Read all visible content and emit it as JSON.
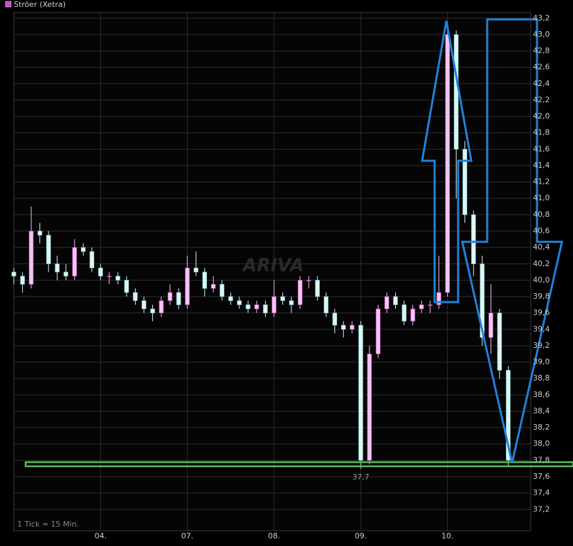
{
  "chart_data": {
    "type": "candlestick",
    "legend": "Ströer (Xetra)",
    "note": "1 Tick = 15 Min.",
    "watermark": "ARIVA",
    "grid": true,
    "xlim": [
      0,
      5.96
    ],
    "xticks": [
      {
        "value": 1,
        "label": "04."
      },
      {
        "value": 2,
        "label": "07."
      },
      {
        "value": 3,
        "label": "08."
      },
      {
        "value": 4,
        "label": "09."
      },
      {
        "value": 5,
        "label": "10."
      }
    ],
    "ylim": [
      36.94,
      43.27
    ],
    "yticks": [
      {
        "value": 37.2,
        "label": "37,2"
      },
      {
        "value": 37.4,
        "label": "37,4"
      },
      {
        "value": 37.6,
        "label": "37,6"
      },
      {
        "value": 37.8,
        "label": "37,8"
      },
      {
        "value": 38.0,
        "label": "38,0"
      },
      {
        "value": 38.2,
        "label": "38,2"
      },
      {
        "value": 38.4,
        "label": "38,4"
      },
      {
        "value": 38.6,
        "label": "38,6"
      },
      {
        "value": 38.8,
        "label": "38,8"
      },
      {
        "value": 39.0,
        "label": "39,0"
      },
      {
        "value": 39.2,
        "label": "39,2"
      },
      {
        "value": 39.4,
        "label": "39,4"
      },
      {
        "value": 39.6,
        "label": "39,6"
      },
      {
        "value": 39.8,
        "label": "39,8"
      },
      {
        "value": 40.0,
        "label": "40,0"
      },
      {
        "value": 40.2,
        "label": "40,2"
      },
      {
        "value": 40.4,
        "label": "40,4"
      },
      {
        "value": 40.6,
        "label": "40,6"
      },
      {
        "value": 40.8,
        "label": "40,8"
      },
      {
        "value": 41.0,
        "label": "41,0"
      },
      {
        "value": 41.2,
        "label": "41,2"
      },
      {
        "value": 41.4,
        "label": "41,4"
      },
      {
        "value": 41.6,
        "label": "41,6"
      },
      {
        "value": 41.8,
        "label": "41,8"
      },
      {
        "value": 42.0,
        "label": "42,0"
      },
      {
        "value": 42.2,
        "label": "42,2"
      },
      {
        "value": 42.4,
        "label": "42,4"
      },
      {
        "value": 42.6,
        "label": "42,6"
      },
      {
        "value": 42.8,
        "label": "42,8"
      },
      {
        "value": 43.0,
        "label": "43,0"
      },
      {
        "value": 43.2,
        "label": "43,2"
      }
    ],
    "low_label": {
      "x": 4.0,
      "y": 37.7,
      "label": "37,7"
    },
    "color": "#cc44cc",
    "up_color": "#f2c6f2",
    "down_color": "#dff4f4",
    "x": [
      0.0,
      0.1,
      0.2,
      0.3,
      0.4,
      0.5,
      0.6,
      0.7,
      0.8,
      0.9,
      1.0,
      1.1,
      1.2,
      1.3,
      1.4,
      1.5,
      1.6,
      1.7,
      1.8,
      1.9,
      2.0,
      2.1,
      2.2,
      2.3,
      2.4,
      2.5,
      2.6,
      2.7,
      2.8,
      2.9,
      3.0,
      3.1,
      3.2,
      3.3,
      3.4,
      3.5,
      3.6,
      3.7,
      3.8,
      3.9,
      4.0,
      4.1,
      4.2,
      4.3,
      4.4,
      4.5,
      4.6,
      4.7,
      4.8,
      4.9,
      5.0,
      5.1,
      5.2,
      5.3,
      5.4,
      5.5,
      5.6,
      5.7
    ],
    "open": [
      40.1,
      40.05,
      39.95,
      40.6,
      40.55,
      40.2,
      40.1,
      40.05,
      40.4,
      40.35,
      40.15,
      40.05,
      40.05,
      40.0,
      39.85,
      39.75,
      39.65,
      39.6,
      39.75,
      39.85,
      39.7,
      40.15,
      40.1,
      39.9,
      39.95,
      39.8,
      39.75,
      39.7,
      39.65,
      39.7,
      39.6,
      39.8,
      39.75,
      39.7,
      40.0,
      40.0,
      39.8,
      39.6,
      39.45,
      39.4,
      39.45,
      37.8,
      39.1,
      39.65,
      39.8,
      39.7,
      39.5,
      39.65,
      39.7,
      39.7,
      39.85,
      43.0,
      41.6,
      40.8,
      40.2,
      39.3,
      39.6,
      38.9
    ],
    "high": [
      40.15,
      40.1,
      40.9,
      40.7,
      40.6,
      40.3,
      40.2,
      40.5,
      40.45,
      40.4,
      40.2,
      40.1,
      40.1,
      40.05,
      39.9,
      39.8,
      39.7,
      39.8,
      39.95,
      39.9,
      40.3,
      40.35,
      40.15,
      40.05,
      40.0,
      39.85,
      39.8,
      39.75,
      39.75,
      39.75,
      40.0,
      39.85,
      39.8,
      40.05,
      40.05,
      40.05,
      39.85,
      39.65,
      39.5,
      39.5,
      39.5,
      39.2,
      39.7,
      39.85,
      39.85,
      39.75,
      39.7,
      39.75,
      39.75,
      40.3,
      43.15,
      43.05,
      41.7,
      40.85,
      40.3,
      39.95,
      39.65,
      38.95
    ],
    "low": [
      39.95,
      39.85,
      39.9,
      40.45,
      40.1,
      40.0,
      40.0,
      40.0,
      40.3,
      40.1,
      40.0,
      39.95,
      39.95,
      39.8,
      39.7,
      39.6,
      39.5,
      39.55,
      39.7,
      39.65,
      39.65,
      40.05,
      39.8,
      39.85,
      39.75,
      39.7,
      39.65,
      39.6,
      39.6,
      39.55,
      39.55,
      39.7,
      39.6,
      39.65,
      39.9,
      39.75,
      39.55,
      39.35,
      39.3,
      39.35,
      37.7,
      37.75,
      39.05,
      39.6,
      39.65,
      39.45,
      39.45,
      39.6,
      39.6,
      39.65,
      39.8,
      41.0,
      40.7,
      40.05,
      39.2,
      39.1,
      38.8,
      37.72
    ],
    "close": [
      40.05,
      39.95,
      40.6,
      40.55,
      40.2,
      40.1,
      40.05,
      40.4,
      40.35,
      40.15,
      40.05,
      40.05,
      40.0,
      39.85,
      39.75,
      39.65,
      39.6,
      39.75,
      39.85,
      39.7,
      40.15,
      40.1,
      39.9,
      39.95,
      39.8,
      39.75,
      39.7,
      39.65,
      39.7,
      39.6,
      39.8,
      39.75,
      39.7,
      40.0,
      40.0,
      39.8,
      39.6,
      39.45,
      39.4,
      39.45,
      37.8,
      39.1,
      39.65,
      39.8,
      39.7,
      39.5,
      39.65,
      39.7,
      39.7,
      39.85,
      43.0,
      41.6,
      40.8,
      40.2,
      39.3,
      39.6,
      38.9,
      37.8
    ]
  }
}
